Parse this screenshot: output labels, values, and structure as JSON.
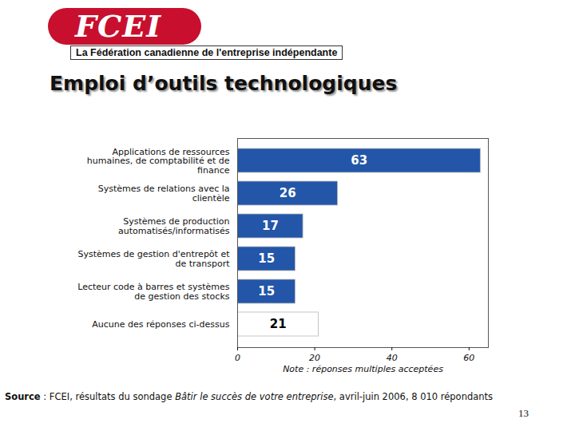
{
  "header": {
    "logo": "FCEI",
    "organization": "La Fédération canadienne de l'entreprise indépendante"
  },
  "chart_data": {
    "type": "bar",
    "orientation": "horizontal",
    "title": "Emploi d’outils technologiques",
    "categories": [
      "Applications de ressources humaines, de comptabilité et de finance",
      "Systèmes de relations avec la clientèle",
      "Systèmes de production automatisés/informatisés",
      "Systèmes de gestion d'entrepôt et de transport",
      "Lecteur code à barres et systèmes de gestion des stocks",
      "Aucune des réponses ci-dessus"
    ],
    "values": [
      63,
      26,
      17,
      15,
      15,
      21
    ],
    "colors": [
      "#2356a8",
      "#2356a8",
      "#2356a8",
      "#2356a8",
      "#2356a8",
      "#ffffff"
    ],
    "data_labels": true,
    "xlim": [
      0,
      65
    ],
    "xticks": [
      0,
      20,
      40,
      60
    ],
    "note": "Note : réponses multiples acceptées"
  },
  "footer": {
    "source_label": "Source",
    "source_before": " : FCEI, résultats du sondage ",
    "source_survey": "Bâtir le succès de votre entreprise",
    "source_after": ", avril-juin 2006, 8 010 répondants",
    "page": "13"
  }
}
